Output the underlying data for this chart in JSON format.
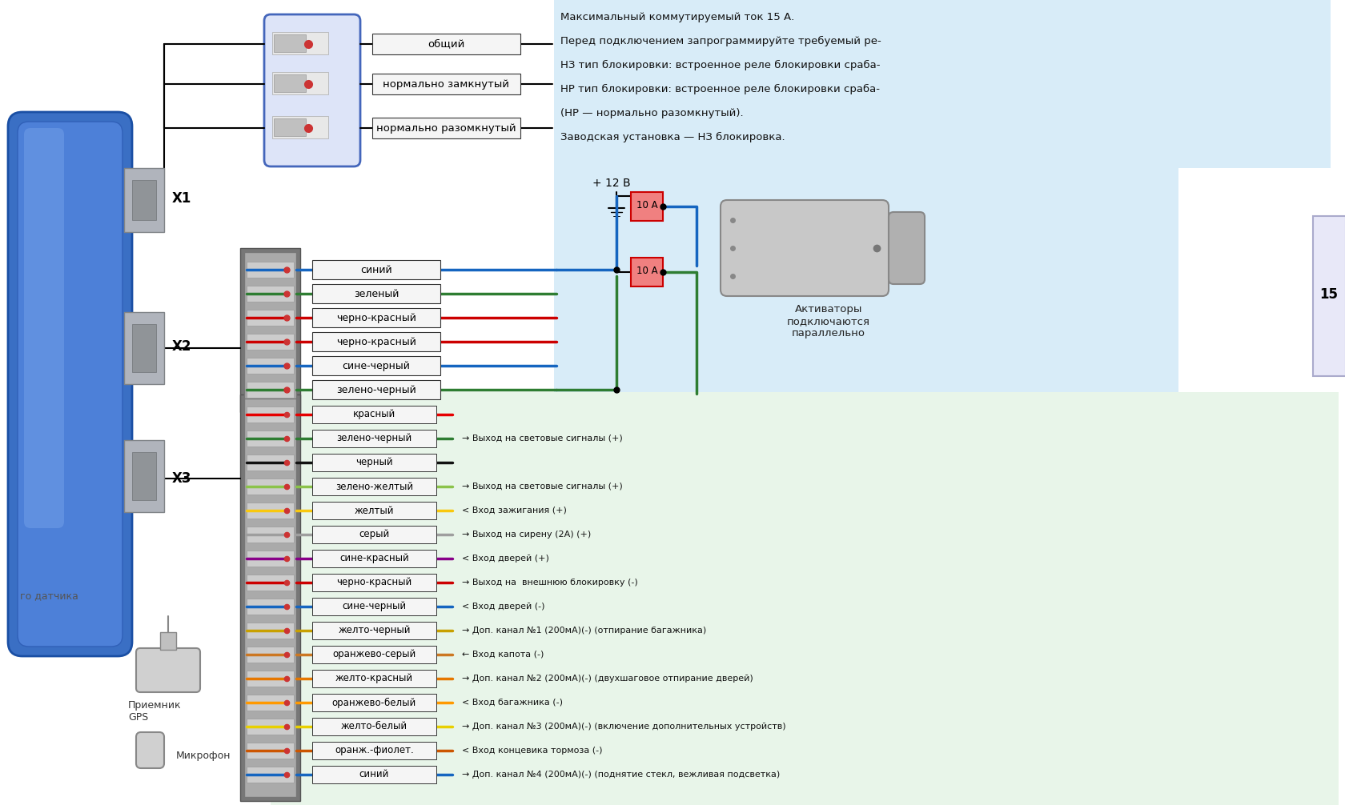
{
  "bg_color": "#ffffff",
  "info_box_bg": "#d8ecf8",
  "x2_box_bg": "#d8ecf8",
  "x3_box_bg": "#e8f5e9",
  "info_lines": [
    "Максимальный коммутируемый ток 15 А.",
    "Перед подключением запрограммируйте требуемый ре-",
    "НЗ тип блокировки: встроенное реле блокировки сраба-",
    "НР тип блокировки: встроенное реле блокировки сраба-",
    "(НР — нормально разомкнутый).",
    "Заводская установка — НЗ блокировка."
  ],
  "relay_labels": [
    "общий",
    "нормально замкнутый",
    "нормально разомкнутый"
  ],
  "x2_wires": [
    {
      "label": "синий",
      "color": "#1565c0",
      "lcolor": "#1565c0"
    },
    {
      "label": "зеленый",
      "color": "#2e7d32",
      "lcolor": "#2e7d32"
    },
    {
      "label": "черно-красный",
      "color": "#cc0000",
      "lcolor": "#cc0000"
    },
    {
      "label": "черно-красный",
      "color": "#cc0000",
      "lcolor": "#cc0000"
    },
    {
      "label": "сине-черный",
      "color": "#1565c0",
      "lcolor": "#1565c0"
    },
    {
      "label": "зелено-черный",
      "color": "#2e7d32",
      "lcolor": "#2e7d32"
    }
  ],
  "x3_wires": [
    {
      "label": "красный",
      "color": "#e60000"
    },
    {
      "label": "зелено-черный",
      "color": "#2e7d32"
    },
    {
      "label": "черный",
      "color": "#111111"
    },
    {
      "label": "зелено-желтый",
      "color": "#8bc34a"
    },
    {
      "label": "желтый",
      "color": "#f9c80e"
    },
    {
      "label": "серый",
      "color": "#9e9e9e"
    },
    {
      "label": "сине-красный",
      "color": "#880088"
    },
    {
      "label": "черно-красный",
      "color": "#cc0000"
    },
    {
      "label": "сине-черный",
      "color": "#1565c0"
    },
    {
      "label": "желто-черный",
      "color": "#c8a000"
    },
    {
      "label": "оранжево-серый",
      "color": "#cc7722"
    },
    {
      "label": "желто-красный",
      "color": "#e67700"
    },
    {
      "label": "оранжево-белый",
      "color": "#ff9900"
    },
    {
      "label": "желто-белый",
      "color": "#e8d000"
    },
    {
      "label": "оранж.-фиолет.",
      "color": "#cc5500"
    },
    {
      "label": "синий",
      "color": "#1565c0"
    }
  ],
  "x3_descriptions": [
    "",
    "→ Выход на световые сигналы (+)",
    "",
    "→ Выход на световые сигналы (+)",
    "< Вход зажигания (+)",
    "→ Выход на сирену (2А) (+)",
    "< Вход дверей (+)",
    "→ Выход на  внешнюю блокировку (-)",
    "< Вход дверей (-)",
    "→ Доп. канал №1 (200мА)(-) (отпирание багажника)",
    "← Вход капота (-)",
    "→ Доп. канал №2 (200мА)(-) (двухшаговое отпирание дверей)",
    "< Вход багажника (-)",
    "→ Доп. канал №3 (200мА)(-) (включение дополнительных устройств)",
    "< Вход концевика тормоза (-)",
    "→ Доп. канал №4 (200мА)(-) (поднятие стекл, вежливая подсветка)"
  ],
  "label_12v": "+ 12 В",
  "label_10a": "10 А",
  "label_activators": "Активаторы\nподключаются\nпараллельно",
  "label_gps": "Приемник\nGPS",
  "label_mic": "Микрофон",
  "label_sensor": "го датчика",
  "label_15": "15"
}
